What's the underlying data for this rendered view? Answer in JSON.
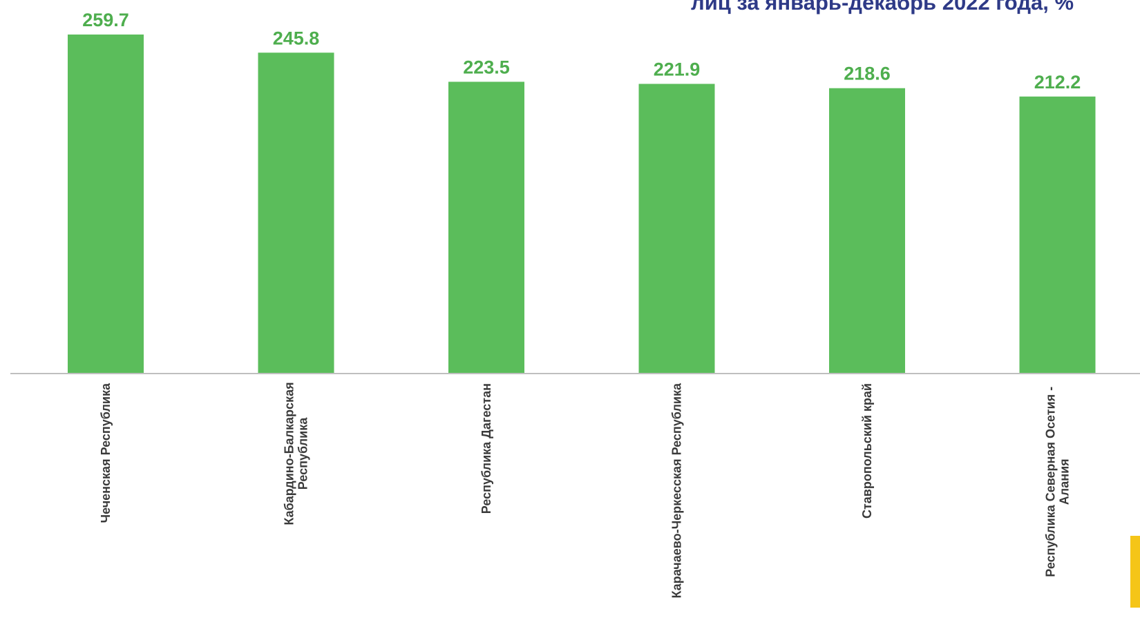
{
  "colors": {
    "bar": "#5BBD5B",
    "value_label": "#4EAE4E",
    "title": "#2E3A87",
    "axis": "#BFBFBF",
    "category_label": "#3A3A3A",
    "accent": "#F5C518"
  },
  "chart_data": {
    "type": "bar",
    "title": "лиц за январь-декабрь 2022 года, %",
    "xlabel": "",
    "ylabel": "",
    "grid": false,
    "legend": "none",
    "categories": [
      "Чеченская Республика",
      "Кабардино-Балкарская Республика",
      "Республика Дагестан",
      "Карачаево-Черкесская Республика",
      "Ставропольский край",
      "Республика Северная Осетия - Алания"
    ],
    "category_label_lines": [
      [
        "Чеченская Республика"
      ],
      [
        "Кабардино-Балкарская",
        "Республика"
      ],
      [
        "Республика Дагестан"
      ],
      [
        "Карачаево-Черкесская Республика"
      ],
      [
        "Ставропольский край"
      ],
      [
        "Республика Северная Осетия -",
        "Алания"
      ]
    ],
    "values": [
      259.7,
      245.8,
      223.5,
      221.9,
      218.6,
      212.2
    ],
    "value_labels": [
      "259.7",
      "245.8",
      "223.5",
      "221.9",
      "218.6",
      "212.2"
    ],
    "ylim": [
      0,
      259.7
    ]
  }
}
